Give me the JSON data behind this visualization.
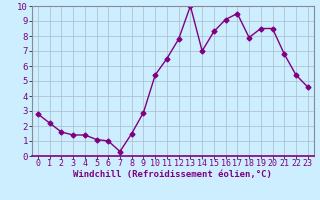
{
  "x": [
    0,
    1,
    2,
    3,
    4,
    5,
    6,
    7,
    8,
    9,
    10,
    11,
    12,
    13,
    14,
    15,
    16,
    17,
    18,
    19,
    20,
    21,
    22,
    23
  ],
  "y": [
    2.8,
    2.2,
    1.6,
    1.4,
    1.4,
    1.1,
    1.0,
    0.3,
    1.5,
    2.9,
    5.4,
    6.5,
    7.8,
    10.0,
    7.0,
    8.3,
    9.1,
    9.5,
    7.9,
    8.5,
    8.5,
    6.8,
    5.4,
    4.6
  ],
  "line_color": "#800080",
  "marker": "D",
  "marker_size": 2.5,
  "line_width": 1.0,
  "xlabel": "Windchill (Refroidissement éolien,°C)",
  "xlabel_fontsize": 6.5,
  "bg_color": "#cceeff",
  "grid_color": "#aabbcc",
  "tick_label_color": "#800080",
  "axis_label_color": "#800080",
  "xlim": [
    -0.5,
    23.5
  ],
  "ylim": [
    0,
    10
  ],
  "yticks": [
    0,
    1,
    2,
    3,
    4,
    5,
    6,
    7,
    8,
    9,
    10
  ],
  "xticks": [
    0,
    1,
    2,
    3,
    4,
    5,
    6,
    7,
    8,
    9,
    10,
    11,
    12,
    13,
    14,
    15,
    16,
    17,
    18,
    19,
    20,
    21,
    22,
    23
  ],
  "tick_fontsize": 6.0,
  "ytick_fontsize": 6.5
}
